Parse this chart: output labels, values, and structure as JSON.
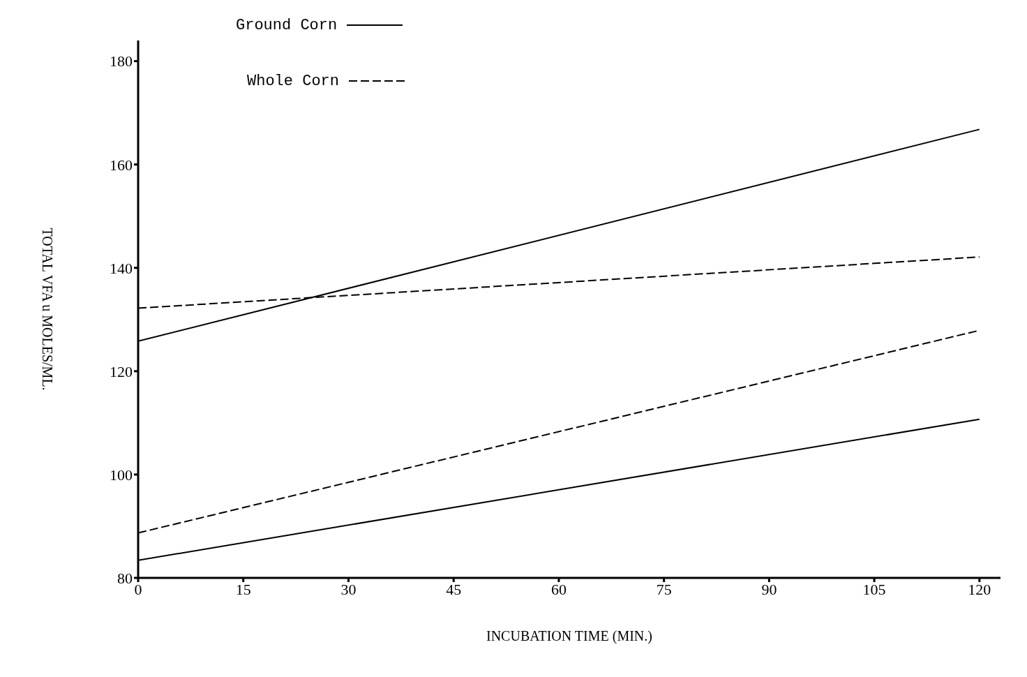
{
  "chart_data": {
    "type": "line",
    "xlabel": "INCUBATION TIME (MIN.)",
    "ylabel": "TOTAL VFA u MOLES/ML.",
    "x": [
      0,
      120
    ],
    "series": [
      {
        "name": "Ground Corn",
        "color": "#000000",
        "line_style": "solid",
        "values": [
          125.8,
          166.8
        ]
      },
      {
        "name": "Whole Corn",
        "color": "#000000",
        "line_style": "dashed",
        "values": [
          132.2,
          142.1
        ]
      },
      {
        "color": "#000000",
        "line_style": "dashed",
        "values": [
          88.7,
          127.9
        ]
      },
      {
        "color": "#000000",
        "line_style": "solid",
        "values": [
          83.4,
          110.7
        ]
      }
    ],
    "xlim": [
      0,
      123
    ],
    "xticks": [
      0,
      15,
      30,
      45,
      60,
      75,
      90,
      105,
      120
    ],
    "ylim": [
      80,
      184
    ],
    "yticks": [
      80,
      100,
      120,
      140,
      160,
      180
    ],
    "legend": "top",
    "marker": "none"
  }
}
